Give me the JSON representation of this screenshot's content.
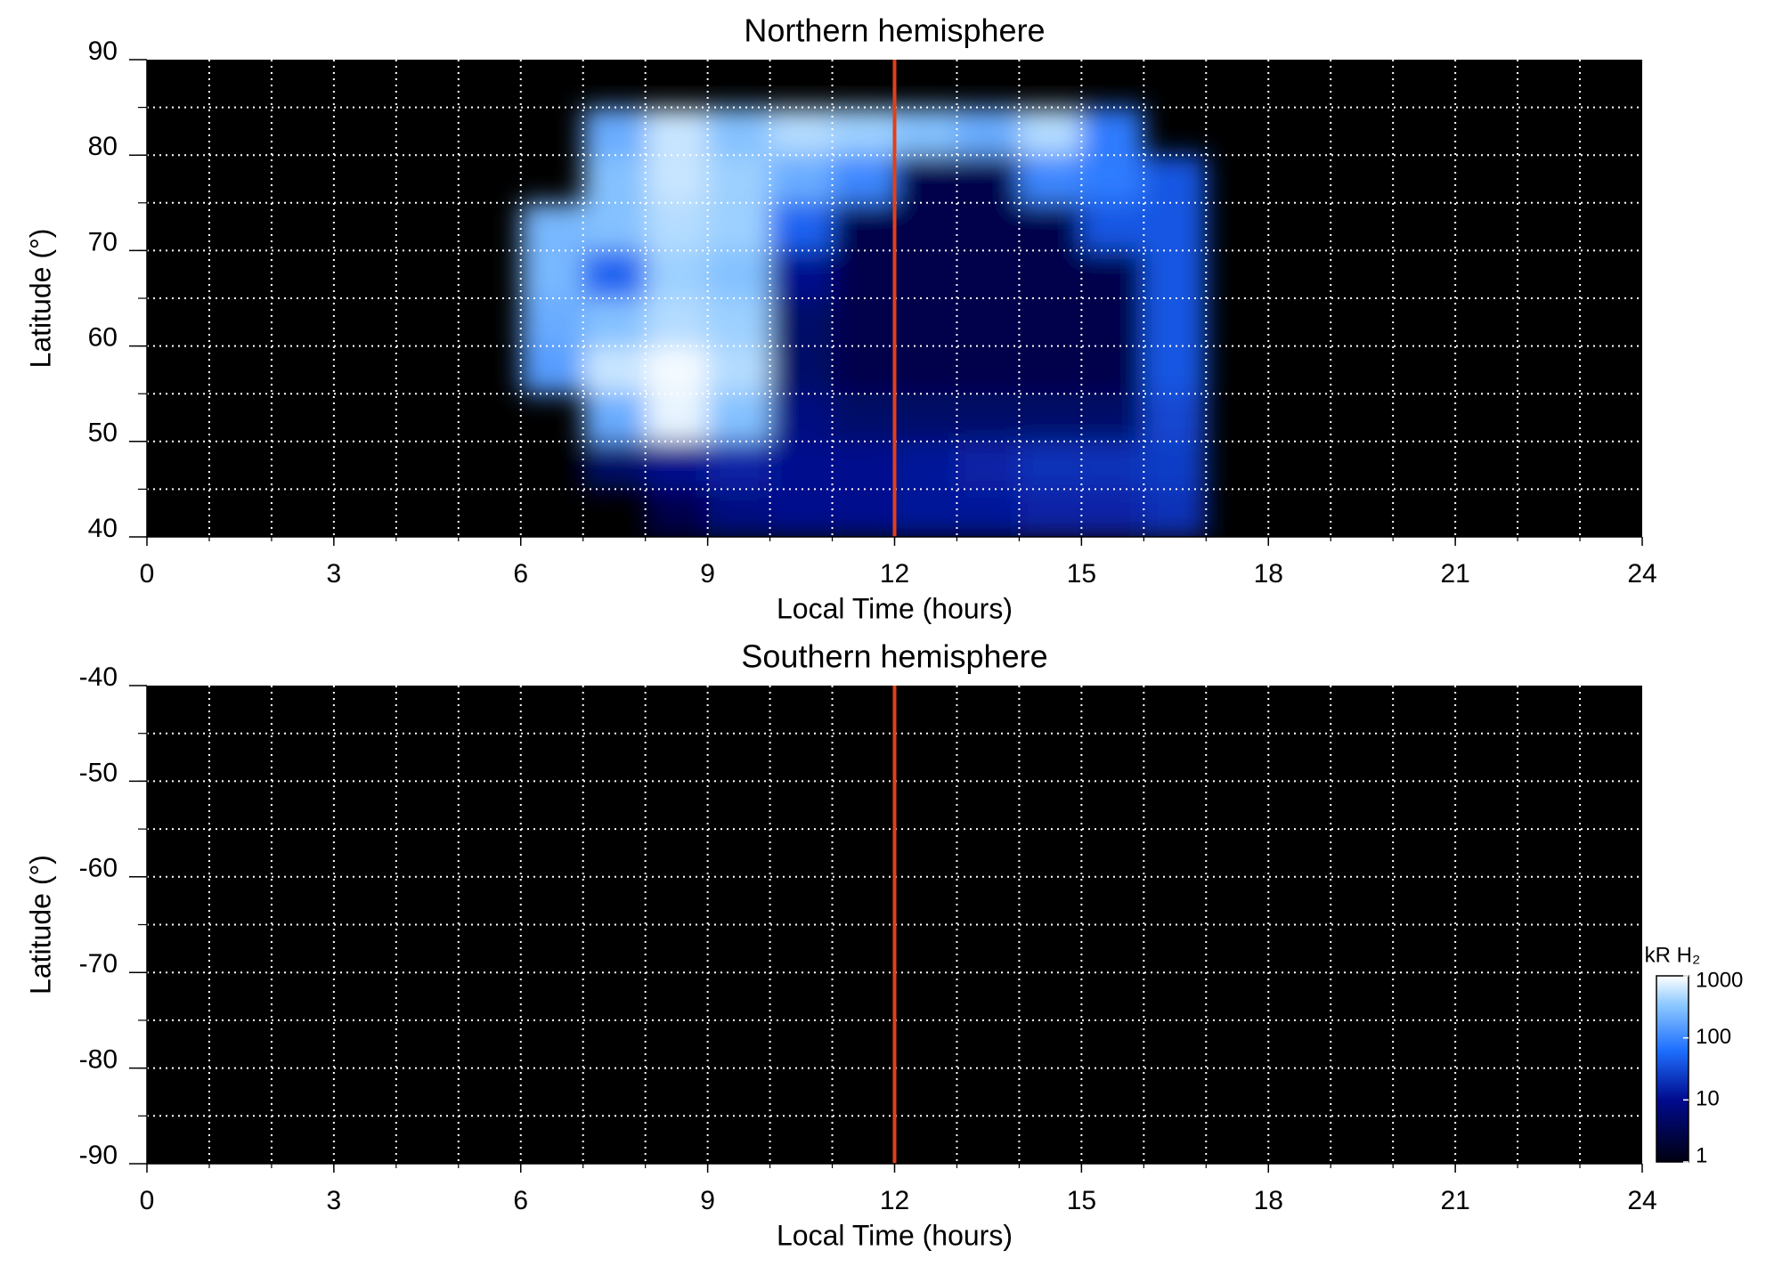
{
  "chart_data": [
    {
      "type": "heatmap",
      "title": "Northern hemisphere",
      "x_label": "Local Time (hours)",
      "y_label": "Latitude (°)",
      "xlim": [
        0,
        24
      ],
      "xticks": [
        0,
        3,
        6,
        9,
        12,
        15,
        18,
        21,
        24
      ],
      "xgrid": [
        1,
        2,
        3,
        4,
        5,
        6,
        7,
        8,
        9,
        10,
        11,
        12,
        13,
        14,
        15,
        16,
        17,
        18,
        19,
        20,
        21,
        22,
        23
      ],
      "ylim": [
        40,
        90
      ],
      "yticks": [
        40,
        50,
        60,
        70,
        80,
        90
      ],
      "ygrid": [
        45,
        50,
        55,
        60,
        65,
        70,
        75,
        80,
        85
      ],
      "xbins": [
        6,
        7,
        8,
        9,
        10,
        11,
        12,
        13,
        14,
        15,
        16,
        17,
        18
      ],
      "ybins": [
        40,
        45,
        50,
        55,
        60,
        65,
        70,
        75,
        80,
        85,
        90
      ],
      "z": [
        [
          null,
          null,
          3,
          8,
          10,
          10,
          12,
          12,
          15,
          15,
          20,
          null
        ],
        [
          null,
          5,
          10,
          15,
          10,
          10,
          12,
          15,
          20,
          20,
          25,
          null
        ],
        [
          null,
          200,
          800,
          300,
          8,
          5,
          5,
          5,
          5,
          5,
          30,
          null
        ],
        [
          150,
          600,
          900,
          500,
          5,
          3,
          3,
          3,
          3,
          3,
          40,
          null
        ],
        [
          200,
          300,
          500,
          400,
          5,
          3,
          3,
          3,
          3,
          3,
          40,
          null
        ],
        [
          250,
          50,
          400,
          300,
          10,
          3,
          3,
          3,
          3,
          3,
          40,
          null
        ],
        [
          250,
          300,
          500,
          400,
          50,
          3,
          3,
          3,
          3,
          40,
          40,
          null
        ],
        [
          null,
          300,
          600,
          400,
          200,
          100,
          3,
          3,
          100,
          80,
          40,
          null
        ],
        [
          null,
          200,
          600,
          300,
          500,
          400,
          300,
          200,
          500,
          80,
          null,
          null
        ],
        [
          null,
          null,
          null,
          null,
          null,
          null,
          null,
          null,
          null,
          null,
          null,
          null
        ]
      ],
      "reference_line": {
        "x": 12,
        "color": "#e0401c"
      },
      "grid": true
    },
    {
      "type": "heatmap",
      "title": "Southern hemisphere",
      "x_label": "Local Time (hours)",
      "y_label": "Latitude (°)",
      "xlim": [
        0,
        24
      ],
      "xticks": [
        0,
        3,
        6,
        9,
        12,
        15,
        18,
        21,
        24
      ],
      "xgrid": [
        1,
        2,
        3,
        4,
        5,
        6,
        7,
        8,
        9,
        10,
        11,
        12,
        13,
        14,
        15,
        16,
        17,
        18,
        19,
        20,
        21,
        22,
        23
      ],
      "ylim": [
        -90,
        -40
      ],
      "yticks": [
        -90,
        -80,
        -70,
        -60,
        -50,
        -40
      ],
      "ygrid": [
        -85,
        -80,
        -75,
        -70,
        -65,
        -60,
        -55,
        -50,
        -45
      ],
      "reference_line": {
        "x": 12,
        "color": "#e0401c"
      },
      "grid": true,
      "colorbar": {
        "label": "kR H₂",
        "lim": [
          1,
          1000
        ],
        "ticks": [
          1,
          10,
          100,
          1000
        ],
        "log": true
      }
    }
  ]
}
